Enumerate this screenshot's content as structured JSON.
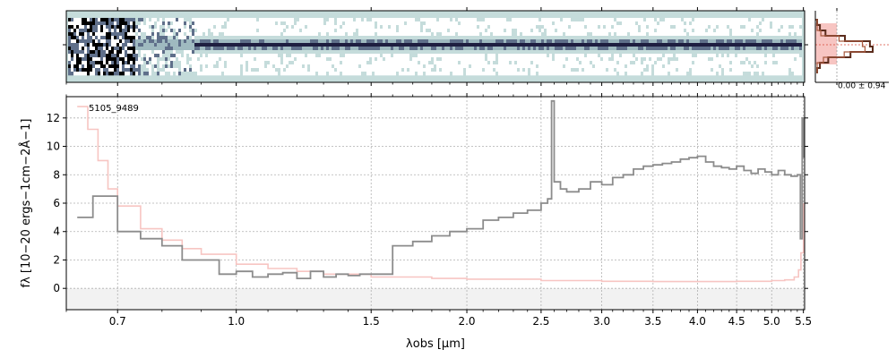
{
  "chart_data": [
    {
      "panel": "2d-spectrum",
      "type": "heatmap",
      "xlim": [
        0.6,
        5.52
      ],
      "trace_y_fraction": 0.45,
      "colormap": [
        "#ffffff",
        "#c5dcdb",
        "#9fbac0",
        "#5f6f8a",
        "#1e1e40",
        "#000000"
      ],
      "background_color": "#c5dcdb"
    },
    {
      "panel": "profile",
      "type": "line",
      "annotation": "0.00 ± 0.94",
      "line_color": "#5b2c1c",
      "band_color": "#f7c5c2",
      "profile_values": [
        0.0,
        0.05,
        0.15,
        0.5,
        0.95,
        1.0,
        0.6,
        0.2,
        0.05,
        0.0
      ]
    },
    {
      "panel": "1d-spectrum",
      "type": "line",
      "object_label": "5105_9489",
      "xlabel": "λobs [μm]",
      "ylabel": "fλ [10−20 ergs−1cm−2Å−1]",
      "xscale": "log",
      "xlim": [
        0.6,
        5.52
      ],
      "ylim": [
        -1.5,
        13.5
      ],
      "x_ticks": [
        0.7,
        1.0,
        1.5,
        2.0,
        2.5,
        3.0,
        3.5,
        4.0,
        4.5,
        5.0,
        5.5
      ],
      "x_tick_labels": [
        "0.7",
        "1.0",
        "1.5",
        "2.0",
        "2.5",
        "3.0",
        "3.5",
        "4.0",
        "4.5",
        "5.0",
        "5.5"
      ],
      "y_ticks": [
        0,
        2,
        4,
        6,
        8,
        10,
        12
      ],
      "y_tick_labels": [
        "0",
        "2",
        "4",
        "6",
        "8",
        "10",
        "12"
      ],
      "grid": true,
      "series": [
        {
          "role": "flux",
          "color": "#8c8c8c",
          "x": [
            0.62,
            0.65,
            0.7,
            0.75,
            0.8,
            0.85,
            0.9,
            0.95,
            1.0,
            1.05,
            1.1,
            1.15,
            1.2,
            1.25,
            1.3,
            1.35,
            1.4,
            1.45,
            1.5,
            1.6,
            1.7,
            1.8,
            1.9,
            2.0,
            2.1,
            2.2,
            2.3,
            2.4,
            2.5,
            2.55,
            2.58,
            2.6,
            2.65,
            2.7,
            2.8,
            2.9,
            3.0,
            3.1,
            3.2,
            3.3,
            3.4,
            3.5,
            3.6,
            3.7,
            3.8,
            3.9,
            4.0,
            4.1,
            4.2,
            4.3,
            4.4,
            4.5,
            4.6,
            4.7,
            4.8,
            4.9,
            5.0,
            5.1,
            5.2,
            5.3,
            5.4,
            5.45,
            5.48,
            5.5
          ],
          "y": [
            5.0,
            6.5,
            4.0,
            3.5,
            3.0,
            2.0,
            2.0,
            1.0,
            1.2,
            0.8,
            1.0,
            1.1,
            0.7,
            1.2,
            0.8,
            1.0,
            0.9,
            1.0,
            1.0,
            3.0,
            3.3,
            3.7,
            4.0,
            4.2,
            4.8,
            5.0,
            5.3,
            5.5,
            6.0,
            6.3,
            13.2,
            7.5,
            7.0,
            6.8,
            7.0,
            7.5,
            7.3,
            7.8,
            8.0,
            8.4,
            8.6,
            8.7,
            8.8,
            8.9,
            9.1,
            9.2,
            9.3,
            8.9,
            8.6,
            8.5,
            8.4,
            8.6,
            8.3,
            8.1,
            8.4,
            8.2,
            8.0,
            8.3,
            8.0,
            7.9,
            8.0,
            3.5,
            12.0,
            9.2
          ]
        },
        {
          "role": "uncertainty",
          "color": "#f7c5c2",
          "x": [
            0.62,
            0.64,
            0.66,
            0.68,
            0.7,
            0.75,
            0.8,
            0.85,
            0.9,
            1.0,
            1.1,
            1.2,
            1.3,
            1.5,
            1.8,
            2.0,
            2.5,
            3.0,
            3.5,
            4.0,
            4.5,
            5.0,
            5.2,
            5.35,
            5.42,
            5.46,
            5.5
          ],
          "y": [
            12.8,
            11.2,
            9.0,
            7.0,
            5.8,
            4.2,
            3.4,
            2.8,
            2.4,
            1.7,
            1.4,
            1.2,
            1.0,
            0.8,
            0.7,
            0.65,
            0.55,
            0.5,
            0.48,
            0.48,
            0.5,
            0.55,
            0.6,
            0.8,
            1.3,
            2.5,
            6.0
          ]
        }
      ]
    }
  ]
}
